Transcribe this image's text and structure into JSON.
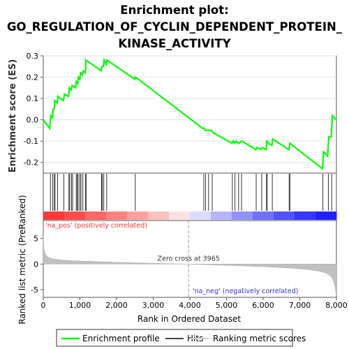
{
  "chart_data": {
    "type": "line",
    "title_lines": [
      "Enrichment plot:",
      "GO_REGULATION_OF_CYCLIN_DEPENDENT_PROTEIN_",
      "KINASE_ACTIVITY"
    ],
    "es_panel": {
      "ylabel": "Enrichment score (ES)",
      "ylim": [
        -0.25,
        0.3
      ],
      "yticks": [
        -0.2,
        -0.1,
        0.0,
        0.1,
        0.2,
        0.3
      ],
      "ytick_labels": [
        "-0.2",
        "-0.1",
        "0.0",
        "0.1",
        "0.2",
        "0.3"
      ],
      "grid": true,
      "line_color": "#00ff00",
      "series": [
        {
          "name": "Enrichment profile",
          "x": [
            0,
            175,
            205,
            255,
            270,
            300,
            315,
            380,
            400,
            550,
            580,
            690,
            710,
            760,
            790,
            880,
            900,
            940,
            960,
            1000,
            1020,
            1070,
            1090,
            1150,
            1165,
            1580,
            1600,
            1640,
            1660,
            1720,
            1740,
            2500,
            2520,
            4350,
            4400,
            4420,
            4500,
            4520,
            4600,
            4630,
            5150,
            5180,
            5220,
            5260,
            5340,
            5420,
            5800,
            5830,
            5950,
            5980,
            6080,
            6100,
            6150,
            6240,
            6260,
            6700,
            6730,
            7620,
            7650,
            7760,
            7790,
            7860,
            7890,
            8000
          ],
          "y": [
            0.0,
            -0.04,
            0.02,
            0.01,
            0.05,
            0.05,
            0.09,
            0.08,
            0.11,
            0.09,
            0.12,
            0.11,
            0.15,
            0.14,
            0.16,
            0.15,
            0.18,
            0.17,
            0.2,
            0.19,
            0.22,
            0.21,
            0.23,
            0.22,
            0.28,
            0.23,
            0.25,
            0.25,
            0.28,
            0.26,
            0.28,
            0.19,
            0.2,
            -0.04,
            -0.04,
            -0.05,
            -0.05,
            -0.05,
            -0.05,
            -0.06,
            -0.11,
            -0.1,
            -0.11,
            -0.1,
            -0.11,
            -0.1,
            -0.14,
            -0.13,
            -0.14,
            -0.13,
            -0.14,
            -0.1,
            -0.11,
            -0.12,
            -0.09,
            -0.14,
            -0.11,
            -0.23,
            -0.15,
            -0.17,
            -0.08,
            -0.08,
            0.02,
            0.0
          ]
        }
      ]
    },
    "hits_panel": {
      "legend_name": "Hits",
      "hit_positions": [
        195,
        255,
        300,
        320,
        390,
        560,
        700,
        720,
        770,
        800,
        900,
        930,
        950,
        1000,
        1030,
        1080,
        1150,
        1170,
        1590,
        1610,
        1650,
        1730,
        2510,
        4380,
        4430,
        4510,
        4610,
        5160,
        5230,
        5330,
        5410,
        5810,
        5960,
        6090,
        6110,
        6250,
        6710,
        6730,
        7630,
        7780,
        7870
      ]
    },
    "rank_panel": {
      "ylabel": "Ranked list metric (PreRanked)",
      "xlabel": "Rank in Ordered Dataset",
      "legend_name": "Ranking metric scores",
      "xlim": [
        0,
        8000
      ],
      "xticks": [
        0,
        1000,
        2000,
        3000,
        4000,
        5000,
        6000,
        7000,
        8000
      ],
      "xtick_labels": [
        "0",
        "1,000",
        "2,000",
        "3,000",
        "4,000",
        "5,000",
        "6,000",
        "7,000",
        "8,000"
      ],
      "ylim": [
        -6.5,
        8.5
      ],
      "yticks": [
        -5,
        0,
        5
      ],
      "ytick_labels": [
        "-5",
        "0",
        "5"
      ],
      "zero_cross": 3965,
      "zero_cross_label": "Zero cross at 3965",
      "pos_label": "'na_pos' (positively correlated)",
      "neg_label": "'na_neg' (negatively correlated)",
      "pos_color": "#ff0000",
      "neg_color": "#0000ff",
      "metric_x": [
        0,
        20,
        60,
        120,
        200,
        300,
        500,
        800,
        1200,
        2000,
        3000,
        3965,
        5000,
        6000,
        6800,
        7200,
        7500,
        7700,
        7800,
        7880,
        7930,
        7970,
        8000
      ],
      "metric_y": [
        5.3,
        2.8,
        1.9,
        1.4,
        1.15,
        0.95,
        0.8,
        0.65,
        0.55,
        0.35,
        0.15,
        0.0,
        -0.25,
        -0.5,
        -0.8,
        -1.05,
        -1.35,
        -1.7,
        -2.1,
        -2.7,
        -3.5,
        -4.8,
        -6.2
      ]
    },
    "legend": {
      "items": [
        {
          "name": "Enrichment profile",
          "color": "#00ff00"
        },
        {
          "name": "Hits",
          "color": "#444444"
        },
        {
          "name": "Ranking metric scores",
          "color": "#cccccc"
        }
      ]
    }
  }
}
